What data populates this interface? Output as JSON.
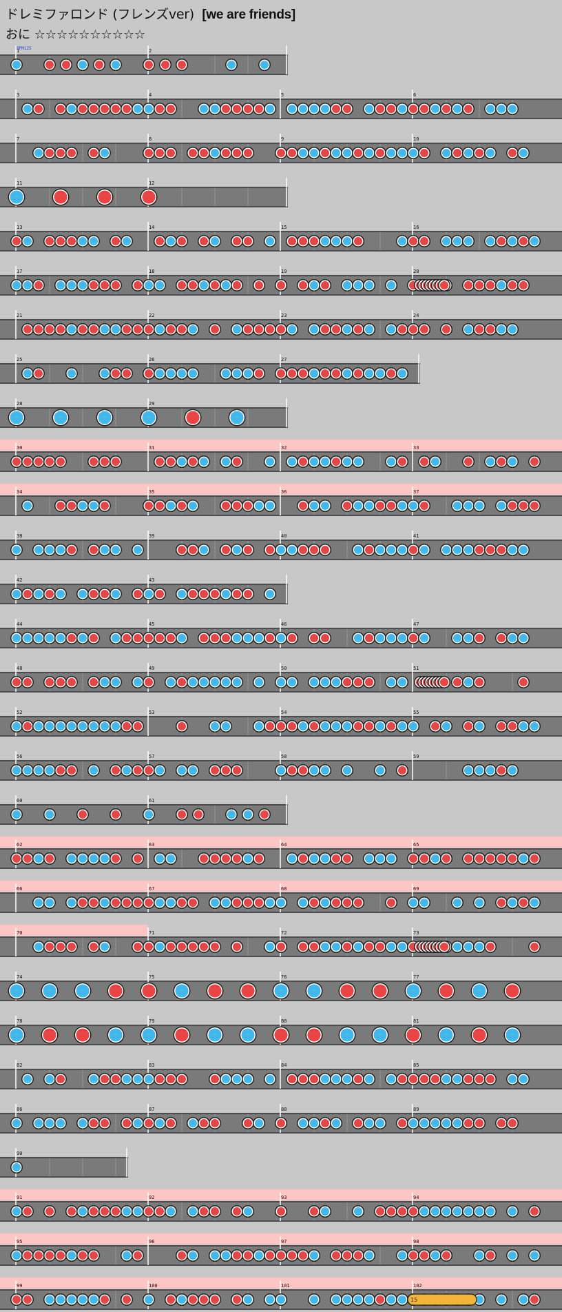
{
  "title": "ドレミファロンド (フレンズver)",
  "subtitle": "[we are friends]",
  "difficulty_label": "おに",
  "stars": "☆☆☆☆☆☆☆☆☆☆",
  "bpm_label": "BPM125",
  "roll_count": "15",
  "colors": {
    "don": "#e84545",
    "ka": "#42b8ec",
    "lane": "#7a7a7a",
    "gogo": "#ffc4c4",
    "bg": "#c8c8c8",
    "roll": "#f2b53a"
  },
  "rows": [
    {
      "measures": [
        1,
        2
      ],
      "first": 1,
      "gogo": null,
      "pattern": "mix1"
    },
    {
      "measures": [
        4,
        4,
        4,
        4
      ],
      "first": 3,
      "gogo": null,
      "pattern": "dense"
    },
    {
      "measures": [
        4,
        4,
        4,
        4
      ],
      "first": 7,
      "gogo": null,
      "pattern": "dense"
    },
    {
      "measures": [
        2,
        0
      ],
      "first": 11,
      "gogo": null,
      "pattern": "big"
    },
    {
      "measures": [
        4,
        4,
        4,
        4
      ],
      "first": 13,
      "gogo": null,
      "pattern": "dense"
    },
    {
      "measures": [
        4,
        4,
        4,
        4
      ],
      "first": 17,
      "gogo": null,
      "pattern": "roll"
    },
    {
      "measures": [
        4,
        4,
        4,
        4
      ],
      "first": 21,
      "gogo": null,
      "pattern": "dense"
    },
    {
      "measures": [
        4,
        4,
        4
      ],
      "first": 25,
      "gogo": null,
      "pattern": "dense"
    },
    {
      "measures": [
        1,
        2
      ],
      "first": 28,
      "gogo": null,
      "pattern": "big"
    },
    {
      "measures": [
        4,
        4,
        4,
        4
      ],
      "first": 30,
      "gogo": "full",
      "pattern": "dense"
    },
    {
      "measures": [
        4,
        4,
        4,
        4
      ],
      "first": 34,
      "gogo": "full",
      "pattern": "dense"
    },
    {
      "measures": [
        4,
        4,
        4,
        4
      ],
      "first": 38,
      "gogo": null,
      "pattern": "dense"
    },
    {
      "measures": [
        4,
        4
      ],
      "first": 42,
      "gogo": null,
      "pattern": "dense"
    },
    {
      "measures": [
        4,
        4,
        4,
        4
      ],
      "first": 44,
      "gogo": null,
      "pattern": "dense"
    },
    {
      "measures": [
        4,
        4,
        4,
        4
      ],
      "first": 48,
      "gogo": null,
      "pattern": "roll"
    },
    {
      "measures": [
        4,
        4,
        4,
        4
      ],
      "first": 52,
      "gogo": null,
      "pattern": "dense"
    },
    {
      "measures": [
        4,
        4,
        4,
        4
      ],
      "first": 56,
      "gogo": null,
      "pattern": "dense"
    },
    {
      "measures": [
        4,
        4
      ],
      "first": 60,
      "gogo": null,
      "pattern": "mix1"
    },
    {
      "measures": [
        4,
        4,
        4,
        4
      ],
      "first": 62,
      "gogo": "full",
      "pattern": "dense"
    },
    {
      "measures": [
        4,
        4,
        4,
        4
      ],
      "first": 66,
      "gogo": "full",
      "pattern": "dense"
    },
    {
      "measures": [
        4,
        4,
        4,
        4
      ],
      "first": 70,
      "gogo": "first",
      "pattern": "roll"
    },
    {
      "measures": [
        4,
        4,
        4,
        4
      ],
      "first": 74,
      "gogo": null,
      "pattern": "big"
    },
    {
      "measures": [
        4,
        4,
        4,
        4
      ],
      "first": 78,
      "gogo": null,
      "pattern": "big"
    },
    {
      "measures": [
        4,
        4,
        4,
        4
      ],
      "first": 82,
      "gogo": null,
      "pattern": "dense"
    },
    {
      "measures": [
        4,
        4,
        4,
        4
      ],
      "first": 86,
      "gogo": null,
      "pattern": "dense"
    },
    {
      "measures": [
        4
      ],
      "first": 90,
      "gogo": null,
      "pattern": "single"
    },
    {
      "measures": [
        4,
        4,
        4,
        4
      ],
      "first": 91,
      "gogo": "full",
      "pattern": "dense"
    },
    {
      "measures": [
        4,
        4,
        4,
        4
      ],
      "first": 95,
      "gogo": "full",
      "pattern": "dense"
    },
    {
      "measures": [
        4,
        4,
        4,
        4
      ],
      "first": 99,
      "gogo": "full",
      "pattern": "end"
    }
  ]
}
